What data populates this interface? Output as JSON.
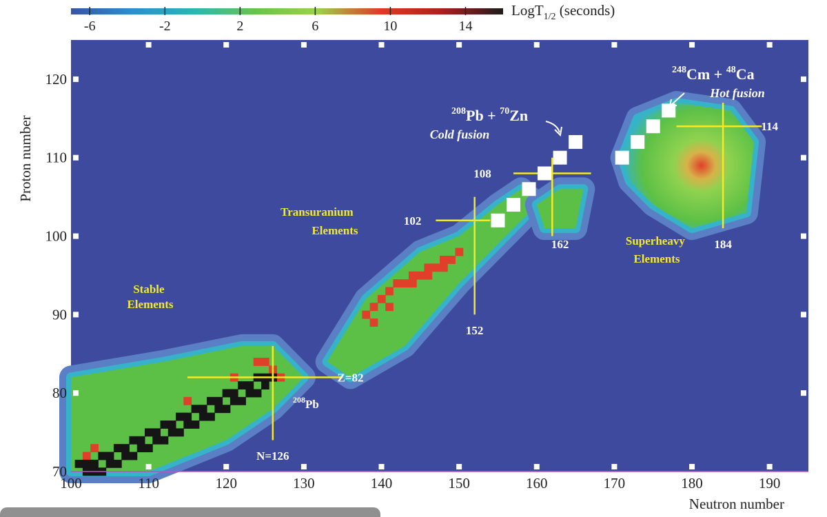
{
  "chart_data": {
    "type": "heatmap",
    "title": "",
    "xlabel": "Neutron number",
    "ylabel": "Proton number",
    "xlim": [
      100,
      195
    ],
    "ylim": [
      70,
      125
    ],
    "x_ticks": [
      "100",
      "110",
      "120",
      "130",
      "140",
      "150",
      "160",
      "170",
      "180",
      "190"
    ],
    "y_ticks": [
      "70",
      "80",
      "90",
      "100",
      "110",
      "120"
    ],
    "colorbar": {
      "label_main": "LogT",
      "label_sub": "1/2",
      "label_unit": " (seconds)",
      "range": [
        -7,
        16
      ],
      "ticks": [
        "-6",
        "-2",
        "2",
        "6",
        "10",
        "14"
      ],
      "stops": [
        "#3953a4",
        "#2b8fd0",
        "#27b9b0",
        "#6cc24a",
        "#9bd24a",
        "#e03a2a",
        "#b01e1e",
        "#1c1c1c"
      ]
    },
    "colors": {
      "background": "#3d4a9e",
      "bin_fill": "#4e6cb8",
      "halo": "#5a7fc4",
      "cyan": "#36b3c8",
      "green": "#5cc046",
      "lightgreen": "#8fd24f",
      "red": "#e0402a",
      "darkred": "#a5281e",
      "black": "#151515",
      "label_yellow": "#f3ea2e",
      "marker_white": "#ffffff"
    },
    "regions": [
      {
        "name": "stable",
        "path": [
          [
            100,
            82
          ],
          [
            112,
            84
          ],
          [
            122,
            86
          ],
          [
            126,
            86
          ],
          [
            130,
            82
          ],
          [
            126,
            78
          ],
          [
            120,
            74
          ],
          [
            110,
            70
          ],
          [
            100,
            70
          ]
        ]
      },
      {
        "name": "transuranium",
        "path": [
          [
            133,
            84
          ],
          [
            138,
            92
          ],
          [
            145,
            98
          ],
          [
            150,
            100
          ],
          [
            155,
            104
          ],
          [
            158,
            106
          ],
          [
            160,
            104
          ],
          [
            156,
            100
          ],
          [
            150,
            94
          ],
          [
            143,
            86
          ],
          [
            136,
            82
          ]
        ]
      },
      {
        "name": "sh_bridge",
        "path": [
          [
            160,
            104
          ],
          [
            163,
            106
          ],
          [
            166,
            106
          ],
          [
            165,
            101
          ],
          [
            161,
            101
          ]
        ]
      },
      {
        "name": "superheavy",
        "path": [
          [
            171,
            110
          ],
          [
            173,
            115
          ],
          [
            178,
            117
          ],
          [
            185,
            116
          ],
          [
            188,
            112
          ],
          [
            187,
            103
          ],
          [
            180,
            101
          ],
          [
            175,
            104
          ],
          [
            172,
            107
          ]
        ]
      }
    ],
    "black_stable_points": [
      [
        101,
        71
      ],
      [
        102,
        71
      ],
      [
        103,
        71
      ],
      [
        104,
        72
      ],
      [
        105,
        72
      ],
      [
        106,
        73
      ],
      [
        107,
        73
      ],
      [
        108,
        74
      ],
      [
        109,
        74
      ],
      [
        110,
        75
      ],
      [
        111,
        75
      ],
      [
        112,
        76
      ],
      [
        113,
        76
      ],
      [
        114,
        77
      ],
      [
        115,
        77
      ],
      [
        116,
        78
      ],
      [
        117,
        78
      ],
      [
        118,
        79
      ],
      [
        119,
        79
      ],
      [
        120,
        80
      ],
      [
        121,
        80
      ],
      [
        122,
        81
      ],
      [
        123,
        81
      ],
      [
        124,
        82
      ],
      [
        125,
        82
      ],
      [
        126,
        82
      ],
      [
        125,
        81
      ],
      [
        124,
        80
      ],
      [
        123,
        80
      ],
      [
        122,
        79
      ],
      [
        121,
        79
      ],
      [
        120,
        78
      ],
      [
        119,
        78
      ],
      [
        118,
        77
      ],
      [
        117,
        77
      ],
      [
        116,
        76
      ],
      [
        115,
        76
      ],
      [
        114,
        75
      ],
      [
        113,
        75
      ],
      [
        112,
        74
      ],
      [
        111,
        74
      ],
      [
        110,
        73
      ],
      [
        109,
        73
      ],
      [
        108,
        72
      ],
      [
        107,
        72
      ],
      [
        106,
        71
      ],
      [
        105,
        71
      ],
      [
        104,
        70
      ],
      [
        103,
        70
      ],
      [
        102,
        70
      ]
    ],
    "red_points": [
      [
        102,
        72
      ],
      [
        103,
        73
      ],
      [
        106,
        73
      ],
      [
        115,
        79
      ],
      [
        121,
        82
      ],
      [
        124,
        84
      ],
      [
        125,
        84
      ],
      [
        126,
        83
      ],
      [
        127,
        82
      ],
      [
        138,
        90
      ],
      [
        139,
        91
      ],
      [
        140,
        92
      ],
      [
        141,
        93
      ],
      [
        142,
        94
      ],
      [
        143,
        94
      ],
      [
        144,
        95
      ],
      [
        145,
        95
      ],
      [
        146,
        96
      ],
      [
        147,
        96
      ],
      [
        148,
        97
      ],
      [
        149,
        97
      ],
      [
        150,
        98
      ],
      [
        139,
        89
      ],
      [
        141,
        91
      ],
      [
        144,
        94
      ],
      [
        146,
        95
      ],
      [
        148,
        96
      ]
    ],
    "superheavy_peak": [
      180,
      110
    ],
    "magic_lines": [
      {
        "axis": "z",
        "value": 82,
        "x_from": 115,
        "x_to": 135,
        "label": "Z=82",
        "label_pos": [
          136,
          82
        ]
      },
      {
        "axis": "n",
        "value": 126,
        "z_from": 74,
        "z_to": 86,
        "label": "N=126",
        "label_pos": [
          126,
          72
        ]
      },
      {
        "axis": "z",
        "value": 102,
        "x_from": 147,
        "x_to": 154,
        "label": "102",
        "label_pos": [
          144,
          102
        ]
      },
      {
        "axis": "n",
        "value": 152,
        "z_from": 90,
        "z_to": 105,
        "label": "152",
        "label_pos": [
          152,
          88
        ]
      },
      {
        "axis": "z",
        "value": 108,
        "x_from": 157,
        "x_to": 167,
        "label": "108",
        "label_pos": [
          153,
          108
        ]
      },
      {
        "axis": "n",
        "value": 162,
        "z_from": 100,
        "z_to": 110,
        "label": "162",
        "label_pos": [
          163,
          99
        ]
      },
      {
        "axis": "z",
        "value": 114,
        "x_from": 178,
        "x_to": 189,
        "label": "114",
        "label_pos": [
          190,
          114
        ]
      },
      {
        "axis": "n",
        "value": 184,
        "z_from": 101,
        "z_to": 117,
        "label": "184",
        "label_pos": [
          184,
          99
        ]
      }
    ],
    "cold_fusion_points": [
      [
        155,
        102
      ],
      [
        157,
        104
      ],
      [
        159,
        106
      ],
      [
        161,
        108
      ],
      [
        163,
        110
      ],
      [
        165,
        112
      ]
    ],
    "hot_fusion_points": [
      [
        171,
        110
      ],
      [
        173,
        112
      ],
      [
        175,
        114
      ],
      [
        177,
        116
      ]
    ],
    "annotations": {
      "stable": [
        "Stable",
        "Elements"
      ],
      "transuranium": [
        "Transuranium",
        "Elements"
      ],
      "superheavy": [
        "Superheavy",
        "Elements"
      ],
      "pb208": {
        "mass": "208",
        "sym": "Pb"
      },
      "cold": {
        "t1m": "208",
        "t1s": "Pb +",
        "t2m": "70",
        "t2s": "Zn",
        "caption": "Cold fusion"
      },
      "hot": {
        "t1m": "248",
        "t1s": "Cm +",
        "t2m": "48",
        "t2s": "Ca",
        "caption": "Hot fusion"
      }
    }
  }
}
